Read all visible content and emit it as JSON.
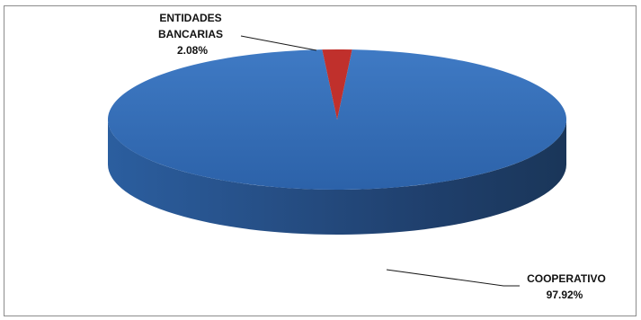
{
  "chart_data": {
    "type": "pie",
    "title": "",
    "series": [
      {
        "name": "",
        "slices": [
          {
            "label": "COOPERATIVO",
            "value": 97.92,
            "value_label": "97.92%",
            "color": "#2f6ab5"
          },
          {
            "label": "ENTIDADES BANCARIAS",
            "value": 2.08,
            "value_label": "2.08%",
            "color": "#c0302c"
          }
        ]
      }
    ],
    "legend": "none",
    "style": "3d"
  },
  "labels": {
    "cooperativo_name": "COOPERATIVO",
    "cooperativo_value": "97.92%",
    "bancarias_name_line1": "ENTIDADES",
    "bancarias_name_line2": "BANCARIAS",
    "bancarias_value": "2.08%"
  }
}
